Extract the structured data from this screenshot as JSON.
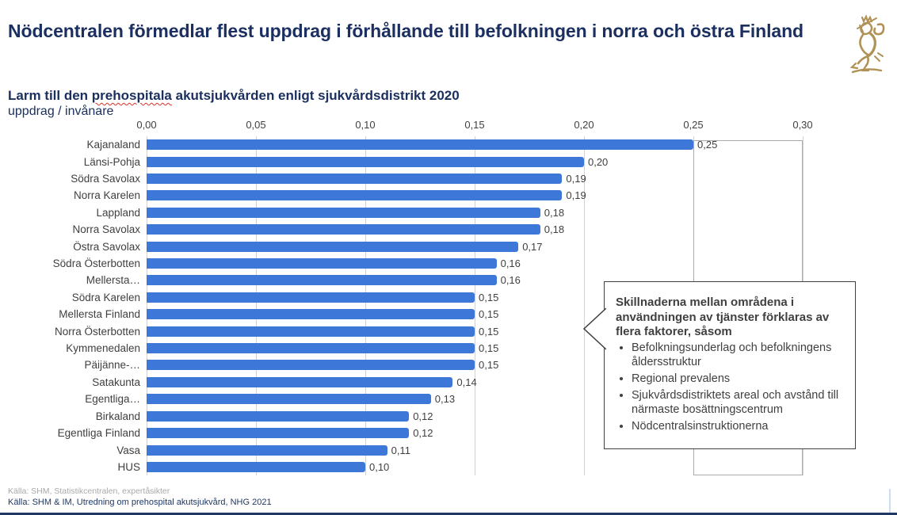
{
  "title": "Nödcentralen förmedlar flest uppdrag i förhållande till befolkningen i norra och östra Finland",
  "subtitle_parts": {
    "pre": "Larm till den ",
    "marked": "prehospitala",
    "post": " akutsjukvården enligt sjukvårdsdistrikt 2020"
  },
  "chart_data": {
    "type": "bar",
    "orientation": "horizontal",
    "title": "Larm till den prehospitala akutsjukvården enligt sjukvårdsdistrikt 2020",
    "xlabel": "uppdrag / invånare",
    "xlim": [
      0,
      0.3
    ],
    "x_ticks": [
      "0,00",
      "0,05",
      "0,10",
      "0,15",
      "0,20",
      "0,25",
      "0,30"
    ],
    "grid": true,
    "bar_color": "#3d78d8",
    "categories": [
      "Kajanaland",
      "Länsi-Pohja",
      "Södra Savolax",
      "Norra Karelen",
      "Lappland",
      "Norra Savolax",
      "Östra Savolax",
      "Södra Österbotten",
      "Mellersta…",
      "Södra Karelen",
      "Mellersta Finland",
      "Norra Österbotten",
      "Kymmenedalen",
      "Päijänne-…",
      "Satakunta",
      "Egentliga…",
      "Birkaland",
      "Egentliga Finland",
      "Vasa",
      "HUS"
    ],
    "values": [
      0.25,
      0.2,
      0.19,
      0.19,
      0.18,
      0.18,
      0.17,
      0.16,
      0.16,
      0.15,
      0.15,
      0.15,
      0.15,
      0.15,
      0.14,
      0.13,
      0.12,
      0.12,
      0.11,
      0.1
    ],
    "value_labels": [
      "0,25",
      "0,20",
      "0,19",
      "0,19",
      "0,18",
      "0,18",
      "0,17",
      "0,16",
      "0,16",
      "0,15",
      "0,15",
      "0,15",
      "0,15",
      "0,15",
      "0,14",
      "0,13",
      "0,12",
      "0,12",
      "0,11",
      "0,10"
    ]
  },
  "callout": {
    "heading": "Skillnaderna mellan områdena i användningen av tjänster förklaras av flera faktorer, såsom",
    "bullets": [
      "Befolkningsunderlag och befolkningens åldersstruktur",
      "Regional prevalens",
      "Sjukvårdsdistriktets areal och avstånd till närmaste bosättningscentrum",
      "Nödcentralsinstruktionerna"
    ]
  },
  "footer": {
    "source1": "Källa: SHM, Statistikcentralen, expertåsikter",
    "source2": "Källa: SHM & IM, Utredning om prehospital akutsjukvård, NHG 2021"
  },
  "logo_name": "finnish-lion-coat-of-arms",
  "colors": {
    "title_navy": "#1b3060",
    "bar_blue": "#3d78d8",
    "gridline": "#d2d2d2",
    "text_gray": "#3f3f3f",
    "footer_gray": "#a9a9a9",
    "footer_navy": "#1f3864",
    "logo_gold": "#b09156",
    "bottom_bar": "#1f3864"
  }
}
